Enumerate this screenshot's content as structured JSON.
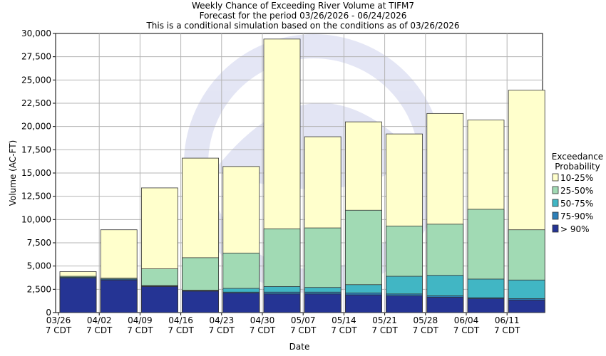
{
  "chart_data": {
    "type": "bar",
    "title": [
      "Weekly Chance of Exceeding River Volume at TIFM7",
      "Forecast for the period 03/26/2026 - 06/24/2026",
      "This is a conditional simulation based on the conditions as of 03/26/2026"
    ],
    "xlabel": "Date",
    "ylabel": "Volume (AC-FT)",
    "ylim": [
      0,
      30000
    ],
    "yticks": [
      "0",
      "2,500",
      "5,000",
      "7,500",
      "10,000",
      "12,500",
      "15,000",
      "17,500",
      "20,000",
      "22,500",
      "25,000",
      "27,500",
      "30,000"
    ],
    "xticks": [
      [
        "03/26",
        "7 CDT"
      ],
      [
        "04/02",
        "7 CDT"
      ],
      [
        "04/09",
        "7 CDT"
      ],
      [
        "04/16",
        "7 CDT"
      ],
      [
        "04/23",
        "7 CDT"
      ],
      [
        "04/30",
        "7 CDT"
      ],
      [
        "05/07",
        "7 CDT"
      ],
      [
        "05/14",
        "7 CDT"
      ],
      [
        "05/21",
        "7 CDT"
      ],
      [
        "05/28",
        "7 CDT"
      ],
      [
        "06/04",
        "7 CDT"
      ],
      [
        "06/11",
        "7 CDT"
      ]
    ],
    "legend_title": [
      "Exceedance",
      "Probability"
    ],
    "legend_placement": "right",
    "grid": true,
    "series": [
      {
        "name": "10-25%",
        "color": "#FFFFCC",
        "values": [
          4400,
          8900,
          13400,
          16600,
          15700,
          29400,
          18900,
          20500,
          19200,
          21400,
          20700,
          23900
        ]
      },
      {
        "name": "25-50%",
        "color": "#A1DAB4",
        "values": [
          3900,
          3700,
          4700,
          5900,
          6400,
          9000,
          9100,
          11000,
          9300,
          9500,
          11100,
          8900
        ]
      },
      {
        "name": "50-75%",
        "color": "#41B6C4",
        "values": [
          3800,
          3600,
          2900,
          2400,
          2600,
          2800,
          2700,
          3000,
          3900,
          4000,
          3600,
          3500
        ]
      },
      {
        "name": "75-90%",
        "color": "#2C7FB8",
        "values": [
          3800,
          3600,
          2850,
          2350,
          2200,
          2200,
          2200,
          2100,
          2000,
          1800,
          1600,
          1500
        ]
      },
      {
        "name": "> 90%",
        "color": "#253494",
        "values": [
          3700,
          3500,
          2800,
          2300,
          2100,
          2000,
          2000,
          1900,
          1800,
          1650,
          1500,
          1350
        ]
      }
    ]
  }
}
